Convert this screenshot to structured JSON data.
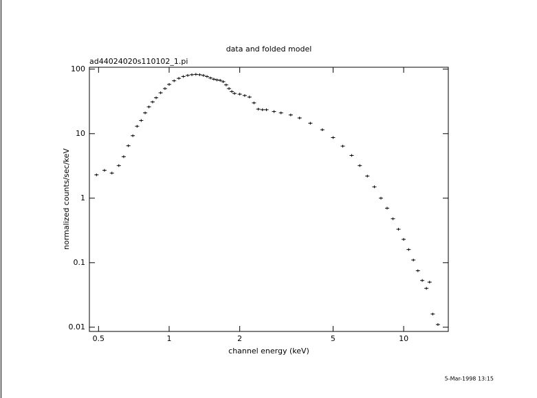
{
  "chart_data": {
    "type": "scatter",
    "title": "data and folded model",
    "subtitle": "ad44024020s110102_1.pi",
    "x_label": "channel energy (keV)",
    "y_label": "normalized counts/sec/keV",
    "annotation": "5-Mar-1998 13:15",
    "x_log": true,
    "y_log": true,
    "color": "#000000",
    "xlim": [
      0.457,
      15.5
    ],
    "ylim": [
      0.0086,
      107
    ],
    "xticks": [
      0.5,
      1,
      2,
      5,
      10
    ],
    "yticks": [
      0.01,
      0.1,
      1,
      10,
      100
    ],
    "x": [
      0.49,
      0.53,
      0.57,
      0.61,
      0.64,
      0.67,
      0.7,
      0.73,
      0.76,
      0.79,
      0.82,
      0.85,
      0.88,
      0.92,
      0.96,
      1.0,
      1.05,
      1.1,
      1.15,
      1.2,
      1.25,
      1.3,
      1.35,
      1.4,
      1.45,
      1.5,
      1.55,
      1.6,
      1.65,
      1.7,
      1.75,
      1.8,
      1.85,
      1.9,
      2.0,
      2.1,
      2.2,
      2.3,
      2.4,
      2.5,
      2.6,
      2.8,
      3.0,
      3.3,
      3.6,
      4.0,
      4.5,
      5.0,
      5.5,
      6.0,
      6.5,
      7.0,
      7.5,
      8.0,
      8.5,
      9.0,
      9.5,
      10.0,
      10.5,
      11.0,
      11.5,
      12.0,
      12.5,
      12.9,
      13.3,
      14.0
    ],
    "values": [
      2.3,
      2.7,
      2.45,
      3.2,
      4.4,
      6.5,
      9.3,
      13,
      16,
      21,
      26,
      31,
      36,
      43,
      50,
      58,
      66,
      72,
      77,
      80,
      82,
      83,
      82,
      80,
      77,
      73,
      70,
      68,
      67,
      64,
      57,
      50,
      45,
      42,
      41,
      39,
      37,
      30,
      24,
      23.5,
      23.5,
      22,
      21,
      19.5,
      17.5,
      14.5,
      11.5,
      8.7,
      6.4,
      4.6,
      3.2,
      2.2,
      1.5,
      1.0,
      0.7,
      0.48,
      0.33,
      0.23,
      0.16,
      0.11,
      0.075,
      0.053,
      0.04,
      0.05,
      0.016,
      0.011
    ]
  }
}
